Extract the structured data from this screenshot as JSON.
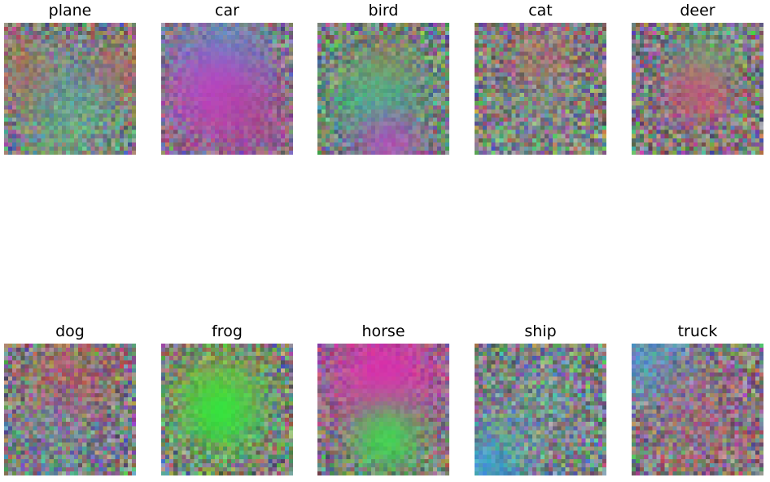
{
  "figure": {
    "panels": [
      {
        "title": "plane",
        "blobs": [
          {
            "color": "#d85a3a",
            "strength": 0.55
          },
          {
            "color": "#d85a3a",
            "strength": 0.55
          },
          {
            "color": "#39b2c6",
            "strength": 0.45
          },
          {
            "color": "#72c86b",
            "strength": 0.4
          }
        ]
      },
      {
        "title": "car",
        "blobs": [
          {
            "color": "#23b7d2",
            "strength": 0.75
          },
          {
            "color": "#c73bc9",
            "strength": 0.85
          },
          {
            "color": "#b53c94",
            "strength": 0.55
          }
        ]
      },
      {
        "title": "bird",
        "blobs": [
          {
            "color": "#d96a35",
            "strength": 0.55
          },
          {
            "color": "#31c58a",
            "strength": 0.7
          },
          {
            "color": "#c53bc8",
            "strength": 0.7
          }
        ]
      },
      {
        "title": "cat",
        "blobs": [
          {
            "color": "#d15b62",
            "strength": 0.4
          },
          {
            "color": "#7ac0a4",
            "strength": 0.25
          }
        ]
      },
      {
        "title": "deer",
        "blobs": [
          {
            "color": "#4ed16f",
            "strength": 0.55
          },
          {
            "color": "#d14b79",
            "strength": 0.75
          }
        ]
      },
      {
        "title": "dog",
        "blobs": [
          {
            "color": "#d54f49",
            "strength": 0.45
          },
          {
            "color": "#5d9bd7",
            "strength": 0.25
          }
        ]
      },
      {
        "title": "frog",
        "blobs": [
          {
            "color": "#a0b12f",
            "strength": 0.55
          },
          {
            "color": "#33e53c",
            "strength": 0.95
          }
        ]
      },
      {
        "title": "horse",
        "blobs": [
          {
            "color": "#df2bb0",
            "strength": 0.95
          },
          {
            "color": "#39e149",
            "strength": 0.85
          }
        ]
      },
      {
        "title": "ship",
        "blobs": [
          {
            "color": "#2aa7e8",
            "strength": 0.7
          },
          {
            "color": "#6fc8c8",
            "strength": 0.25
          }
        ]
      },
      {
        "title": "truck",
        "blobs": [
          {
            "color": "#42a9e4",
            "strength": 0.6
          },
          {
            "color": "#cc5588",
            "strength": 0.35
          }
        ]
      }
    ]
  }
}
